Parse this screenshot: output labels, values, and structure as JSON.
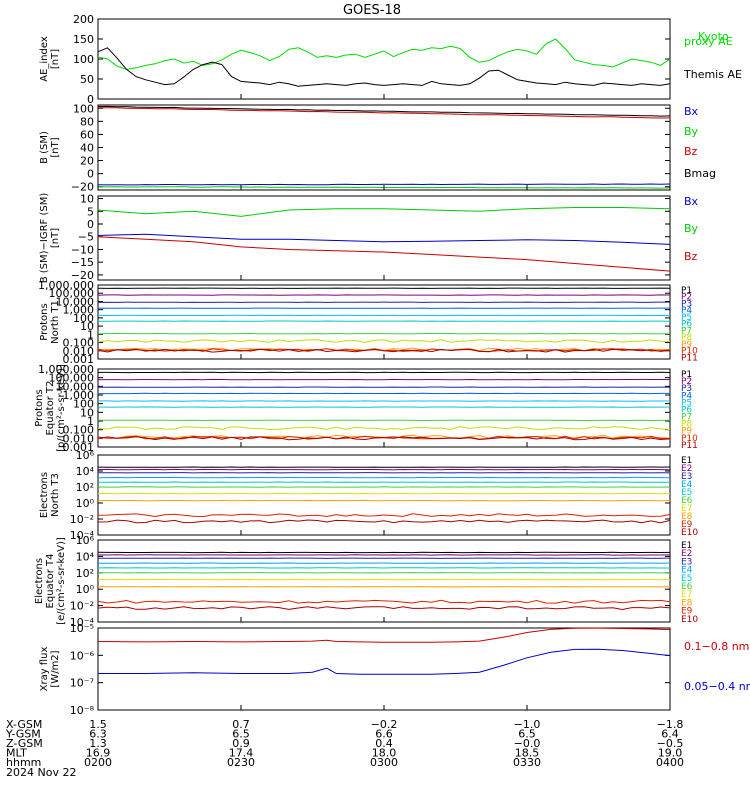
{
  "title": "GOES-18",
  "date_label": "2024 Nov 22",
  "chart_data": [
    {
      "type": "line",
      "ylabel": [
        "AE_index",
        "[nT]"
      ],
      "ylim": [
        0,
        200
      ],
      "yticks": [
        "0",
        "50",
        "100",
        "150",
        "200"
      ],
      "x": [
        0,
        2,
        4,
        6,
        8,
        10,
        12,
        14,
        16,
        18,
        20,
        22,
        24,
        26,
        28,
        30,
        32,
        34,
        36,
        38,
        40,
        42,
        44,
        46,
        48,
        50,
        52,
        54,
        56,
        58,
        60,
        62,
        64,
        66,
        68,
        70,
        72,
        74,
        76,
        78,
        80,
        82,
        84,
        86,
        88,
        90,
        92,
        94,
        96,
        98,
        100,
        102,
        104,
        106,
        108,
        110,
        112,
        114,
        116,
        118,
        120
      ],
      "series": [
        {
          "name": "Kyoto proxy AE",
          "color": "#00dd00",
          "values": [
            105,
            100,
            82,
            74,
            78,
            84,
            88,
            96,
            100,
            90,
            94,
            84,
            88,
            98,
            112,
            122,
            116,
            108,
            96,
            106,
            124,
            128,
            118,
            104,
            108,
            104,
            110,
            112,
            104,
            112,
            120,
            106,
            116,
            124,
            122,
            128,
            126,
            132,
            126,
            104,
            92,
            96,
            108,
            118,
            124,
            120,
            112,
            138,
            150,
            126,
            98,
            92,
            86,
            84,
            80,
            90,
            100,
            96,
            92,
            84,
            100
          ]
        },
        {
          "name": "Themis AE",
          "color": "#000000",
          "values": [
            118,
            128,
            102,
            74,
            56,
            48,
            42,
            36,
            38,
            55,
            74,
            86,
            92,
            86,
            56,
            44,
            42,
            40,
            36,
            42,
            38,
            32,
            34,
            36,
            38,
            36,
            34,
            38,
            40,
            36,
            34,
            36,
            38,
            36,
            34,
            44,
            38,
            36,
            34,
            38,
            52,
            70,
            72,
            60,
            48,
            44,
            40,
            38,
            36,
            42,
            38,
            36,
            34,
            40,
            38,
            36,
            34,
            38,
            36,
            34,
            38
          ]
        }
      ]
    },
    {
      "type": "line",
      "ylabel": [
        "B (SM)",
        "[nT]"
      ],
      "ylim": [
        -25,
        105
      ],
      "yticks": [
        "−20",
        "0",
        "20",
        "40",
        "60",
        "80",
        "100"
      ],
      "x": [
        0,
        120
      ],
      "series": [
        {
          "name": "Bx",
          "color": "#0000cc",
          "values": [
            -17,
            -16
          ]
        },
        {
          "name": "By",
          "color": "#00cc00",
          "values": [
            -20,
            -22
          ]
        },
        {
          "name": "Bz",
          "color": "#cc0000",
          "values": [
            101,
            85
          ]
        },
        {
          "name": "Bmag",
          "color": "#000000",
          "values": [
            103,
            88
          ]
        }
      ]
    },
    {
      "type": "line",
      "ylabel": [
        "B (SM)−IGRF (SM)",
        "[nT]"
      ],
      "ylim": [
        -22,
        11
      ],
      "yticks": [
        "−20",
        "−15",
        "−10",
        "−5",
        "0",
        "5",
        "10"
      ],
      "x": [
        0,
        10,
        20,
        30,
        40,
        50,
        60,
        70,
        80,
        90,
        100,
        110,
        120
      ],
      "series": [
        {
          "name": "Bx",
          "color": "#0000cc",
          "values": [
            -4.5,
            -4,
            -5,
            -6,
            -6,
            -6.5,
            -7,
            -6.8,
            -6.5,
            -6.2,
            -6.5,
            -7.2,
            -8
          ]
        },
        {
          "name": "By",
          "color": "#00cc00",
          "values": [
            5.5,
            4,
            5,
            3,
            5.5,
            6,
            6,
            5.5,
            5,
            6,
            6.5,
            6.5,
            6
          ]
        },
        {
          "name": "Bz",
          "color": "#cc0000",
          "values": [
            -5,
            -6,
            -7,
            -9,
            -10,
            -10.5,
            -11,
            -12,
            -13,
            -14,
            -15.5,
            -17,
            -18.5
          ]
        }
      ]
    },
    {
      "type": "line",
      "log": true,
      "ylabel": [
        "Protons",
        "North T1"
      ],
      "ylim": [
        0.001,
        1000000
      ],
      "yticks": [
        "1,000,000",
        "100,000",
        "10,000",
        "1,000",
        "100",
        "10",
        "1",
        "0.100",
        "0.010",
        "0.001"
      ],
      "series": [
        {
          "name": "P1",
          "color": "#000000",
          "value": 400000
        },
        {
          "name": "P2",
          "color": "#7f007f",
          "value": 60000
        },
        {
          "name": "P3",
          "color": "#2020aa",
          "value": 8000
        },
        {
          "name": "P4",
          "color": "#0060ff",
          "value": 1500
        },
        {
          "name": "P5",
          "color": "#00c0ff",
          "value": 200
        },
        {
          "name": "P6",
          "color": "#00c8c8",
          "value": 40
        },
        {
          "name": "P7",
          "color": "#40d040",
          "value": 1.2
        },
        {
          "name": "P8",
          "color": "#c0e000",
          "value": 0.15
        },
        {
          "name": "P9",
          "color": "#ffa000",
          "value": 0.015
        },
        {
          "name": "P10",
          "color": "#e02000",
          "value": 0.012
        },
        {
          "name": "P11",
          "color": "#aa0000",
          "value": 0.01
        }
      ]
    },
    {
      "type": "line",
      "log": true,
      "ylabel": [
        "Protons",
        "Equator T2",
        "[p/(cm²-s-sr-keV)]"
      ],
      "ylim": [
        0.001,
        1000000
      ],
      "yticks": [
        "1,000,000",
        "100,000",
        "10,000",
        "1,000",
        "100",
        "10",
        "1",
        "0.100",
        "0.010",
        "0.001"
      ],
      "series": [
        {
          "name": "P1",
          "color": "#000000",
          "value": 400000
        },
        {
          "name": "P2",
          "color": "#7f007f",
          "value": 60000
        },
        {
          "name": "P3",
          "color": "#2020aa",
          "value": 8000
        },
        {
          "name": "P4",
          "color": "#0060ff",
          "value": 1500
        },
        {
          "name": "P5",
          "color": "#00c0ff",
          "value": 200
        },
        {
          "name": "P6",
          "color": "#00c8c8",
          "value": 40
        },
        {
          "name": "P7",
          "color": "#40d040",
          "value": 1.2
        },
        {
          "name": "P8",
          "color": "#c0e000",
          "value": 0.15
        },
        {
          "name": "P9",
          "color": "#ffa000",
          "value": 0.015
        },
        {
          "name": "P10",
          "color": "#e02000",
          "value": 0.012
        },
        {
          "name": "P11",
          "color": "#aa0000",
          "value": 0.01
        }
      ]
    },
    {
      "type": "line",
      "log": true,
      "ylabel": [
        "Electrons",
        "North T3"
      ],
      "ylim": [
        0.0001,
        1000000
      ],
      "yticks": [
        "10⁶",
        "10⁴",
        "10²",
        "10⁰",
        "10⁻²",
        "10⁻⁴"
      ],
      "series": [
        {
          "name": "E1",
          "color": "#000000",
          "value": 30000
        },
        {
          "name": "E2",
          "color": "#7f007f",
          "value": 15000
        },
        {
          "name": "E3",
          "color": "#2020aa",
          "value": 6000
        },
        {
          "name": "E4",
          "color": "#00a0ff",
          "value": 1500
        },
        {
          "name": "E5",
          "color": "#00c8c8",
          "value": 400
        },
        {
          "name": "E6",
          "color": "#40d040",
          "value": 100
        },
        {
          "name": "E7",
          "color": "#e0e000",
          "value": 15
        },
        {
          "name": "E8",
          "color": "#ffa000",
          "value": 2
        },
        {
          "name": "E9",
          "color": "#e02000",
          "value": 0.03
        },
        {
          "name": "E10",
          "color": "#aa0000",
          "value": 0.005
        }
      ]
    },
    {
      "type": "line",
      "log": true,
      "ylabel": [
        "Electrons",
        "Equator T4",
        "[e/(cm²-s-sr-keV)]"
      ],
      "ylim": [
        0.0001,
        1000000
      ],
      "yticks": [
        "10⁶",
        "10⁴",
        "10²",
        "10⁰",
        "10⁻²",
        "10⁻⁴"
      ],
      "series": [
        {
          "name": "E1",
          "color": "#000000",
          "value": 30000
        },
        {
          "name": "E2",
          "color": "#7f007f",
          "value": 15000
        },
        {
          "name": "E3",
          "color": "#2020aa",
          "value": 6000
        },
        {
          "name": "E4",
          "color": "#00a0ff",
          "value": 1500
        },
        {
          "name": "E5",
          "color": "#00c8c8",
          "value": 400
        },
        {
          "name": "E6",
          "color": "#40d040",
          "value": 100
        },
        {
          "name": "E7",
          "color": "#e0e000",
          "value": 15
        },
        {
          "name": "E8",
          "color": "#ffa000",
          "value": 2
        },
        {
          "name": "E9",
          "color": "#e02000",
          "value": 0.03
        },
        {
          "name": "E10",
          "color": "#aa0000",
          "value": 0.005
        }
      ]
    },
    {
      "type": "line",
      "log": true,
      "ylabel": [
        "Xray flux",
        "[W/m2]"
      ],
      "ylim": [
        1e-09,
        1e-05
      ],
      "yticks": [
        "10⁻⁵",
        "10⁻⁶",
        "10⁻⁷",
        "10⁻⁸"
      ],
      "x": [
        0,
        10,
        20,
        30,
        40,
        45,
        48,
        50,
        55,
        60,
        70,
        75,
        80,
        85,
        90,
        95,
        100,
        105,
        110,
        115,
        120
      ],
      "series": [
        {
          "name": "0.1−0.8 nm",
          "color": "#cc0000",
          "values": [
            2.2e-06,
            2.1e-06,
            2.2e-06,
            2.1e-06,
            2.2e-06,
            2.3e-06,
            2.5e-06,
            2.2e-06,
            2.1e-06,
            2e-06,
            2e-06,
            2.1e-06,
            2.3e-06,
            3.5e-06,
            6e-06,
            8.5e-06,
            9.8e-06,
            9.9e-06,
            9.5e-06,
            9e-06,
            8.4e-06
          ]
        },
        {
          "name": "0.05−0.4 nm",
          "color": "#0000cc",
          "values": [
            6e-08,
            6e-08,
            6.5e-08,
            6e-08,
            6e-08,
            7e-08,
            1.1e-07,
            6e-08,
            5.5e-08,
            5.5e-08,
            5.5e-08,
            6e-08,
            7e-08,
            1.5e-07,
            3.5e-07,
            6.5e-07,
            9e-07,
            9.2e-07,
            8e-07,
            6e-07,
            4.5e-07
          ]
        }
      ]
    }
  ],
  "axis_table": {
    "row_labels": [
      "X-GSM",
      "Y-GSM",
      "Z-GSM",
      "MLT",
      "hhmm"
    ],
    "columns": [
      [
        "1.5",
        "6.3",
        "1.3",
        "16.9",
        "0200"
      ],
      [
        "0.7",
        "6.5",
        "0.9",
        "17.4",
        "0230"
      ],
      [
        "−0.2",
        "6.6",
        "0.4",
        "18.0",
        "0300"
      ],
      [
        "−1.0",
        "6.5",
        "−0.0",
        "18.5",
        "0330"
      ],
      [
        "−1.8",
        "6.4",
        "−0.5",
        "19.0",
        "0400"
      ]
    ]
  }
}
